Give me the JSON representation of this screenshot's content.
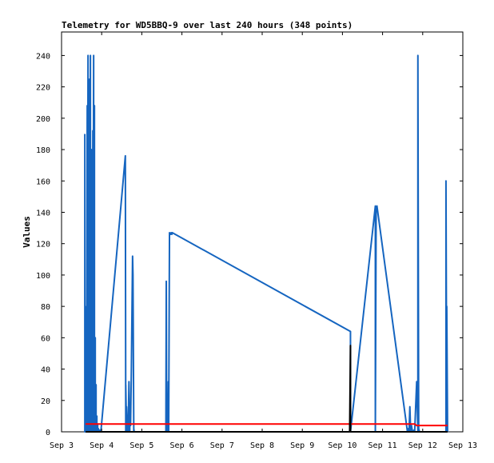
{
  "chart_data": {
    "type": "line",
    "title": "Telemetry for WD5BBQ-9 over last 240 hours (348 points)",
    "xlabel": "",
    "ylabel": "Values",
    "xlim": [
      "Sep 3",
      "Sep 13"
    ],
    "ylim": [
      0,
      255
    ],
    "x_ticks": [
      "Sep 3",
      "Sep 4",
      "Sep 5",
      "Sep 6",
      "Sep 7",
      "Sep 8",
      "Sep 9",
      "Sep 10",
      "Sep 11",
      "Sep 12",
      "Sep 13"
    ],
    "y_ticks": [
      0,
      20,
      40,
      60,
      80,
      100,
      120,
      140,
      160,
      180,
      200,
      220,
      240
    ],
    "grid": false,
    "legend": "none",
    "series": [
      {
        "color": "#1565c0",
        "x_days": [
          3.58,
          3.58,
          3.59,
          3.6,
          3.6,
          3.62,
          3.62,
          3.64,
          3.64,
          3.66,
          3.66,
          3.68,
          3.68,
          3.7,
          3.7,
          3.72,
          3.72,
          3.74,
          3.74,
          3.76,
          3.76,
          3.78,
          3.78,
          3.8,
          3.8,
          3.82,
          3.82,
          3.84,
          3.84,
          3.86,
          3.86,
          3.88,
          3.88,
          3.9,
          3.9,
          3.92,
          3.92,
          3.94,
          3.94,
          3.96,
          3.96,
          3.98,
          4.59,
          4.6,
          4.6,
          4.62,
          4.62,
          4.64,
          4.64,
          4.66,
          4.68,
          4.7,
          4.7,
          4.72,
          4.74,
          4.77,
          4.78,
          4.8,
          4.8,
          4.81,
          4.85,
          5.6,
          5.61,
          5.62,
          5.65,
          5.66,
          5.67,
          5.69,
          5.7,
          5.72,
          5.73,
          5.75,
          5.76,
          10.2,
          10.2,
          10.82,
          10.82,
          10.84,
          10.86,
          11.62,
          11.64,
          11.66,
          11.68,
          11.7,
          11.72,
          11.74,
          11.76,
          11.78,
          11.8,
          11.85,
          11.88,
          11.88,
          11.9,
          11.9,
          11.92,
          12.58,
          12.58,
          12.6,
          12.6,
          12.62,
          12.62
        ],
        "values": [
          190,
          0,
          14,
          40,
          0,
          80,
          0,
          208,
          0,
          240,
          0,
          145,
          0,
          225,
          0,
          240,
          0,
          180,
          0,
          120,
          0,
          192,
          0,
          240,
          0,
          208,
          0,
          60,
          0,
          30,
          0,
          10,
          0,
          5,
          0,
          2,
          0,
          1,
          0,
          1,
          0,
          0,
          176,
          0,
          30,
          0,
          16,
          0,
          8,
          0,
          32,
          0,
          16,
          4,
          40,
          112,
          100,
          0,
          2,
          0,
          0,
          0,
          96,
          0,
          2,
          32,
          0,
          127,
          126,
          126,
          127,
          126,
          127,
          64,
          0,
          144,
          0,
          143,
          144,
          0,
          2,
          0,
          16,
          0,
          4,
          1,
          0,
          1,
          0,
          32,
          0,
          240,
          0,
          2,
          0,
          0,
          160,
          0,
          80,
          0,
          0
        ]
      },
      {
        "color": "#ff0000",
        "x_days": [
          3.6,
          4.0,
          10.8,
          11.8,
          11.85,
          12.0,
          12.62
        ],
        "values": [
          5,
          5,
          5,
          5,
          4,
          4,
          4
        ]
      },
      {
        "color": "#000000",
        "x_days": [
          3.6,
          10.18,
          10.2,
          10.2,
          10.22,
          12.62
        ],
        "values": [
          0,
          0,
          55,
          0,
          0,
          0
        ]
      }
    ]
  }
}
